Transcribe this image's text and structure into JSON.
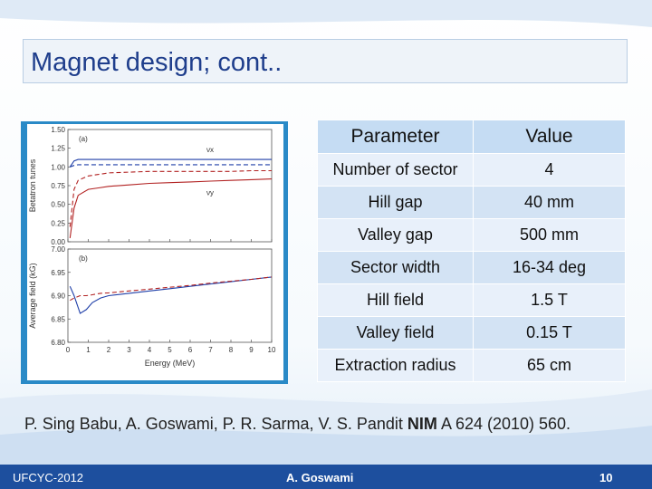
{
  "slide": {
    "title": "Magnet design; cont..",
    "citation_authors": "P. Sing Babu, A. Goswami, P. R. Sarma, V. S. Pandit",
    "citation_journal": "NIM",
    "citation_rest": "A 624 (2010) 560.",
    "footer_left": "UFCYC-2012",
    "footer_center": "A. Goswami",
    "footer_right": "10",
    "colors": {
      "title_text": "#1f3e8c",
      "footer_bg": "#1d4f9e",
      "figure_frame": "#2a8ac7",
      "table_header": "#c5dcf3"
    }
  },
  "table": {
    "headers": [
      "Parameter",
      "Value"
    ],
    "rows": [
      [
        "Number of sector",
        "4"
      ],
      [
        "Hill gap",
        "40 mm"
      ],
      [
        "Valley gap",
        "500 mm"
      ],
      [
        "Sector width",
        "16-34 deg"
      ],
      [
        "Hill field",
        "1.5 T"
      ],
      [
        "Valley field",
        "0.15 T"
      ],
      [
        "Extraction radius",
        "65 cm"
      ]
    ]
  },
  "chart_data": [
    {
      "type": "line",
      "panel_label": "(a)",
      "ylabel": "Betatron tunes",
      "xlim": [
        0,
        10
      ],
      "ylim": [
        0.0,
        1.5
      ],
      "yticks": [
        "0.00",
        "0.25",
        "0.50",
        "0.75",
        "1.00",
        "1.25",
        "1.50"
      ],
      "x": [
        0.1,
        0.3,
        0.5,
        1,
        1.5,
        2,
        3,
        4,
        5,
        6,
        7,
        8,
        9,
        10
      ],
      "series": [
        {
          "name": "νx",
          "color": "#1f3fa8",
          "values": [
            1.0,
            1.08,
            1.1,
            1.1,
            1.1,
            1.1,
            1.1,
            1.1,
            1.1,
            1.1,
            1.1,
            1.1,
            1.1,
            1.1
          ]
        },
        {
          "color": "#1f3fa8",
          "dashed": true,
          "values": [
            1.0,
            1.02,
            1.03,
            1.03,
            1.03,
            1.03,
            1.03,
            1.03,
            1.03,
            1.03,
            1.03,
            1.03,
            1.03,
            1.03
          ]
        },
        {
          "color": "#b22222",
          "dashed": true,
          "values": [
            0.2,
            0.7,
            0.82,
            0.88,
            0.9,
            0.92,
            0.93,
            0.94,
            0.94,
            0.94,
            0.94,
            0.94,
            0.95,
            0.95
          ]
        },
        {
          "name": "νy",
          "color": "#b22222",
          "values": [
            0.05,
            0.45,
            0.62,
            0.7,
            0.72,
            0.74,
            0.76,
            0.78,
            0.79,
            0.8,
            0.81,
            0.82,
            0.83,
            0.84
          ]
        }
      ],
      "legend": [
        {
          "label": "νx",
          "x": 6.8,
          "y": 1.2
        },
        {
          "label": "νy",
          "x": 6.8,
          "y": 0.62
        }
      ]
    },
    {
      "type": "line",
      "panel_label": "(b)",
      "xlabel": "Energy (MeV)",
      "ylabel": "Average field (kG)",
      "xlim": [
        0,
        10
      ],
      "ylim": [
        6.8,
        7.0
      ],
      "xticks": [
        "0",
        "1",
        "2",
        "3",
        "4",
        "5",
        "6",
        "7",
        "8",
        "9",
        "10"
      ],
      "yticks": [
        "6.80",
        "6.85",
        "6.90",
        "6.95",
        "7.00"
      ],
      "x": [
        0.1,
        0.3,
        0.6,
        0.9,
        1.2,
        1.6,
        2,
        3,
        4,
        5,
        6,
        7,
        8,
        9,
        10
      ],
      "series": [
        {
          "color": "#1f3fa8",
          "values": [
            6.92,
            6.9,
            6.862,
            6.87,
            6.885,
            6.895,
            6.9,
            6.905,
            6.91,
            6.915,
            6.92,
            6.925,
            6.93,
            6.935,
            6.94
          ]
        },
        {
          "color": "#b22222",
          "dashed": true,
          "values": [
            6.89,
            6.895,
            6.9,
            6.9,
            6.902,
            6.905,
            6.906,
            6.91,
            6.914,
            6.918,
            6.922,
            6.927,
            6.931,
            6.935,
            6.94
          ]
        }
      ]
    }
  ]
}
